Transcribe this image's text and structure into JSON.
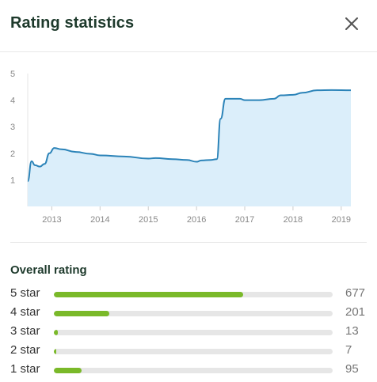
{
  "dialog": {
    "title": "Rating statistics",
    "close_icon": "close-icon"
  },
  "chart_data": {
    "type": "area",
    "y_ticks": [
      "5",
      "4",
      "3",
      "2",
      "1"
    ],
    "x_ticks": [
      "2013",
      "2014",
      "2015",
      "2016",
      "2017",
      "2018",
      "2019"
    ],
    "ylim": [
      0,
      5
    ],
    "xlim": [
      2012.5,
      2019.2
    ],
    "grid": false,
    "color": "#2b83b8",
    "fill_color": "#dbeefa",
    "x": [
      2012.5,
      2012.58,
      2012.65,
      2012.75,
      2012.85,
      2012.95,
      2013.05,
      2013.2,
      2013.5,
      2013.8,
      2014.0,
      2014.5,
      2015.0,
      2015.15,
      2015.5,
      2015.8,
      2016.0,
      2016.1,
      2016.3,
      2016.42,
      2016.5,
      2016.6,
      2016.9,
      2017.0,
      2017.3,
      2017.6,
      2017.75,
      2018.0,
      2018.2,
      2018.5,
      2018.8,
      2019.2
    ],
    "y": [
      0.95,
      1.7,
      1.55,
      1.5,
      1.6,
      2.0,
      2.2,
      2.15,
      2.05,
      1.98,
      1.92,
      1.88,
      1.8,
      1.82,
      1.78,
      1.75,
      1.68,
      1.73,
      1.75,
      1.78,
      3.3,
      4.05,
      4.05,
      4.0,
      4.0,
      4.05,
      4.18,
      4.2,
      4.28,
      4.37,
      4.38,
      4.37
    ]
  },
  "overall": {
    "title": "Overall rating",
    "rows": [
      {
        "label": "5 star",
        "count": "677",
        "fraction": 0.68
      },
      {
        "label": "4 star",
        "count": "201",
        "fraction": 0.2
      },
      {
        "label": "3 star",
        "count": "13",
        "fraction": 0.015
      },
      {
        "label": "2 star",
        "count": "7",
        "fraction": 0.008
      },
      {
        "label": "1 star",
        "count": "95",
        "fraction": 0.1
      }
    ],
    "bar_color": "#7ab929",
    "track_color": "#e6e6e6"
  }
}
